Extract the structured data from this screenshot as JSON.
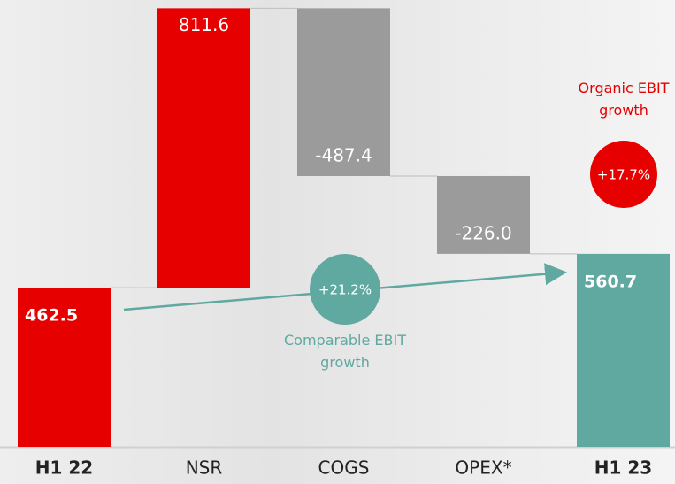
{
  "chart_data": {
    "type": "waterfall",
    "categories": [
      "H1 22",
      "NSR",
      "COGS",
      "OPEX*",
      "H1 23"
    ],
    "values": [
      462.5,
      811.6,
      -487.4,
      -226.0,
      560.7
    ],
    "value_labels": [
      "462.5",
      "811.6",
      "-487.4",
      "-226.0",
      "560.7"
    ],
    "measure": [
      "absolute",
      "relative",
      "relative",
      "relative",
      "total"
    ],
    "colors": [
      "#e60000",
      "#e60000",
      "#9b9b9b",
      "#9b9b9b",
      "#5fa9a1"
    ],
    "annotations": [
      {
        "badge": "+21.2%",
        "text": "Comparable EBIT growth",
        "color": "#5fa9a1"
      },
      {
        "badge": "+17.7%",
        "text": "Organic EBIT growth",
        "color": "#e60000"
      }
    ]
  }
}
